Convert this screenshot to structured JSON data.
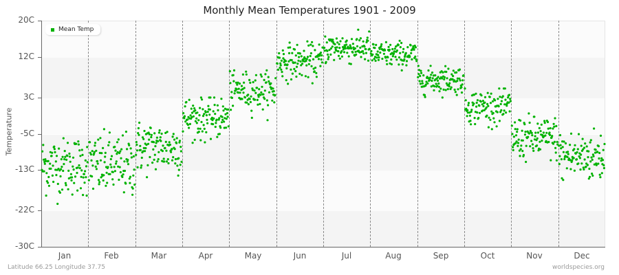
{
  "title": "Monthly Mean Temperatures 1901 - 2009",
  "legend": {
    "label": "Mean Temp",
    "color": "#00b200"
  },
  "footer": {
    "location": "Latitude 66.25 Longitude 37.75",
    "source": "worldspecies.org"
  },
  "chart_data": {
    "type": "scatter",
    "title": "Monthly Mean Temperatures 1901 - 2009",
    "xlabel": "",
    "ylabel": "Temperature",
    "ylim": [
      -30,
      20
    ],
    "yticks": [
      "20C",
      "12C",
      "3C",
      "-5C",
      "-13C",
      "-22C",
      "-30C"
    ],
    "ytick_values": [
      20,
      12,
      3,
      -5,
      -13,
      -22,
      -30
    ],
    "categories": [
      "Jan",
      "Feb",
      "Mar",
      "Apr",
      "May",
      "Jun",
      "Jul",
      "Aug",
      "Sep",
      "Oct",
      "Nov",
      "Dec"
    ],
    "series": [
      {
        "name": "Mean Temp",
        "color": "#00b200",
        "points_per_month": 109,
        "monthly_mean": [
          -12,
          -12,
          -8,
          -1.5,
          4.5,
          11,
          14,
          12.5,
          7,
          1,
          -6,
          -10
        ],
        "monthly_spread": [
          3.6,
          3.8,
          3.2,
          2.6,
          2.3,
          2.1,
          1.9,
          1.6,
          1.7,
          2.1,
          2.6,
          3.2
        ],
        "monthly_min": [
          -22,
          -24,
          -16,
          -7,
          -2,
          6,
          10,
          9,
          3,
          -4,
          -12,
          -18
        ],
        "monthly_max": [
          -6,
          -4,
          -2,
          3,
          9,
          16,
          18,
          16,
          10,
          5,
          0,
          -3
        ]
      }
    ],
    "grid": {
      "horizontal_bands": true,
      "vertical_month_dividers": "dashed"
    },
    "legend_position": "top-left"
  }
}
